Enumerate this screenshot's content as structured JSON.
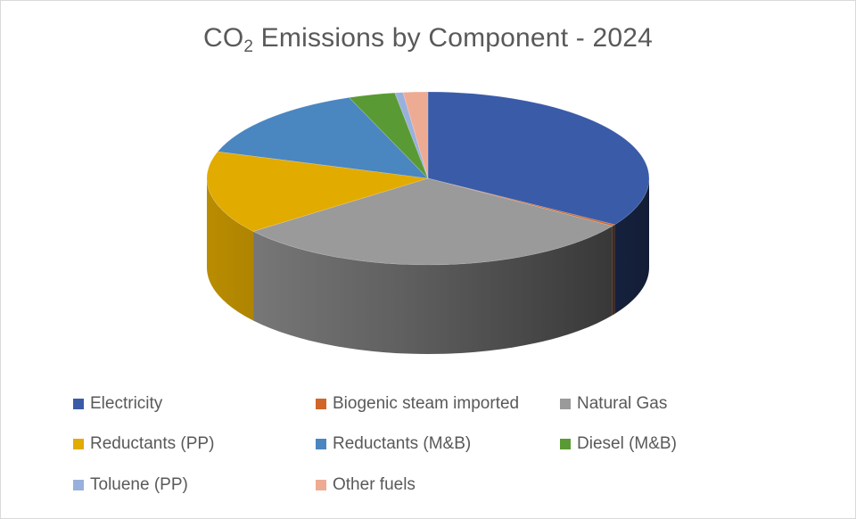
{
  "chart_data": {
    "type": "pie",
    "style": "3d",
    "title_main": "CO",
    "title_sub": "2",
    "title_rest": " Emissions by Component - 2024",
    "legend_position": "bottom",
    "series": [
      {
        "name": "Electricity",
        "value": 34.0,
        "color": "#3a5ba8"
      },
      {
        "name": "Biogenic steam imported",
        "value": 0.3,
        "color": "#d0662a"
      },
      {
        "name": "Natural Gas",
        "value": 30.2,
        "color": "#9a9a9a"
      },
      {
        "name": "Reductants (PP)",
        "value": 15.5,
        "color": "#e2ab00"
      },
      {
        "name": "Reductants (M&B)",
        "value": 14.2,
        "color": "#4a86c0"
      },
      {
        "name": "Diesel (M&B)",
        "value": 3.4,
        "color": "#5a9a34"
      },
      {
        "name": "Toluene (PP)",
        "value": 0.6,
        "color": "#9ab0dc"
      },
      {
        "name": "Other fuels",
        "value": 1.8,
        "color": "#eeab93"
      }
    ]
  }
}
